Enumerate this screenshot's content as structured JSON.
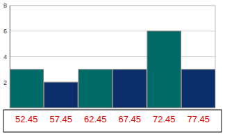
{
  "chart_data": {
    "type": "bar",
    "categories": [
      "52.45",
      "57.45",
      "62.45",
      "67.45",
      "72.45",
      "77.45"
    ],
    "values": [
      3,
      2,
      3,
      3,
      6,
      3
    ],
    "colors": [
      "#006b66",
      "#0b2e6b",
      "#006b66",
      "#0b2e6b",
      "#006b66",
      "#0b2e6b"
    ],
    "ylim": [
      0,
      8
    ],
    "yticks": [
      2,
      4,
      6,
      8
    ],
    "grid": true
  }
}
